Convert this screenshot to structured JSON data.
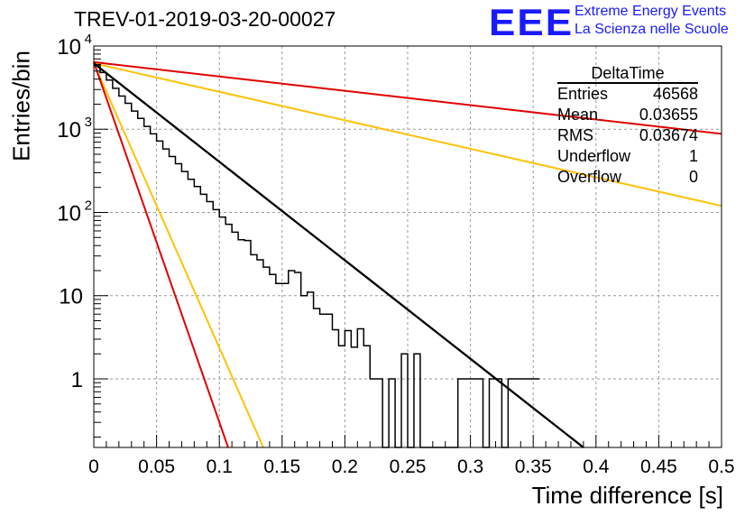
{
  "title": "TREV-01-2019-03-20-00027",
  "logo": {
    "text": "EEE",
    "line1": "Extreme Energy Events",
    "line2": "La Scienza nelle Scuole",
    "color": "#1a1aff"
  },
  "stats": {
    "name": "DeltaTime",
    "rows": [
      {
        "label": "Entries",
        "value": "46568"
      },
      {
        "label": "Mean",
        "value": "0.03655"
      },
      {
        "label": "RMS",
        "value": "0.03674"
      },
      {
        "label": "Underflow",
        "value": "1"
      },
      {
        "label": "Overflow",
        "value": "0"
      }
    ]
  },
  "chart_data": {
    "type": "line",
    "xlabel": "Time difference [s]",
    "ylabel": "Entries/bin",
    "xlim": [
      0,
      0.5
    ],
    "ylim": [
      0.15,
      10000
    ],
    "yscale": "log",
    "grid": true,
    "xticks": [
      "0",
      "0.05",
      "0.1",
      "0.15",
      "0.2",
      "0.25",
      "0.3",
      "0.35",
      "0.4",
      "0.45",
      "0.5"
    ],
    "yticks": [
      {
        "value": 1,
        "label": "1"
      },
      {
        "value": 10,
        "label": "10"
      },
      {
        "value": 100,
        "label": "10",
        "exp": "2"
      },
      {
        "value": 1000,
        "label": "10",
        "exp": "3"
      },
      {
        "value": 10000,
        "label": "10",
        "exp": "4"
      }
    ],
    "histogram": {
      "name": "DeltaTime",
      "bin_width": 0.005,
      "color": "#000000",
      "counts": [
        5800,
        4800,
        3900,
        3100,
        2500,
        2050,
        1650,
        1350,
        1080,
        880,
        720,
        580,
        470,
        385,
        310,
        250,
        205,
        165,
        135,
        108,
        88,
        72,
        58,
        47,
        46,
        31,
        27,
        22,
        18,
        14,
        14,
        20,
        19,
        10,
        11,
        7,
        6,
        6,
        3.9,
        2.5,
        3.8,
        2.4,
        4.0,
        2.5,
        1,
        1,
        0.1,
        1,
        0.1,
        2,
        0.1,
        2,
        0.1,
        0.1,
        0.1,
        0.1,
        0.1,
        0.1,
        1,
        1,
        1,
        1,
        0.1,
        1,
        1,
        0.1,
        1,
        1,
        1,
        1,
        1
      ]
    },
    "fits": [
      {
        "color": "#000000",
        "points": [
          [
            0,
            6200
          ],
          [
            0.39,
            0.15
          ]
        ]
      },
      {
        "color": "#ffc107",
        "points": [
          [
            0,
            6200
          ],
          [
            0.5,
            120
          ]
        ]
      },
      {
        "color": "#ffc107",
        "points": [
          [
            0,
            6200
          ],
          [
            0.135,
            0.15
          ]
        ]
      },
      {
        "color": "#e00000",
        "points": [
          [
            0,
            6400
          ],
          [
            0.5,
            880
          ]
        ]
      },
      {
        "color": "#e00000",
        "points": [
          [
            0,
            6400
          ],
          [
            0.107,
            0.15
          ]
        ]
      }
    ]
  }
}
